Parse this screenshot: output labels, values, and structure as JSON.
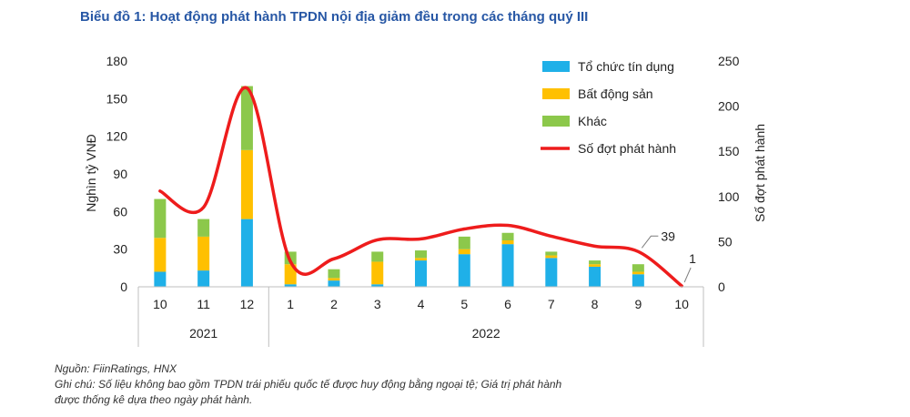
{
  "title": "Biểu đồ 1: Hoạt động phát hành TPDN nội địa giảm đều trong các tháng quý III",
  "source": "Nguồn: FiinRatings, HNX",
  "note_line1": "Ghi chú: Số liệu không bao gồm TPDN trái phiếu quốc tế được huy động bằng ngoại tệ; Giá trị phát hành",
  "note_line2": "được thống kê dựa theo ngày phát hành.",
  "chart_data": {
    "type": "bar",
    "stacked": true,
    "categories": [
      "10",
      "11",
      "12",
      "1",
      "2",
      "3",
      "4",
      "5",
      "6",
      "7",
      "8",
      "9",
      "10"
    ],
    "year_groups": [
      {
        "label": "2021",
        "start": 0,
        "end": 2
      },
      {
        "label": "2022",
        "start": 3,
        "end": 12
      }
    ],
    "series": [
      {
        "name": "Tổ chức tín dụng",
        "color": "#1fb0e8",
        "axis": "left",
        "values": [
          12,
          13,
          54,
          2,
          5,
          2,
          21,
          26,
          34,
          23,
          16,
          10,
          0
        ]
      },
      {
        "name": "Bất động sản",
        "color": "#ffc000",
        "axis": "left",
        "values": [
          27,
          27,
          55,
          16,
          2,
          18,
          2,
          4,
          3,
          2,
          2,
          2,
          0
        ]
      },
      {
        "name": "Khác",
        "color": "#8cc84b",
        "axis": "left",
        "values": [
          31,
          14,
          51,
          10,
          7,
          8,
          6,
          10,
          6,
          3,
          3,
          6,
          0
        ]
      },
      {
        "name": "Số đợt phát hành",
        "color": "#ee1c1c",
        "type": "line",
        "axis": "right",
        "values": [
          106,
          88,
          220,
          28,
          31,
          52,
          53,
          64,
          68,
          56,
          45,
          39,
          1
        ]
      }
    ],
    "ylabel": "Nghìn tỷ VNĐ",
    "y2label": "Số đợt phát hành",
    "ylim": [
      0,
      180
    ],
    "yticks": [
      "0",
      "30",
      "60",
      "90",
      "120",
      "150",
      "180"
    ],
    "y2lim": [
      0,
      250
    ],
    "y2ticks": [
      "0",
      "50",
      "100",
      "150",
      "200",
      "250"
    ],
    "annotations": [
      {
        "text": "39",
        "index": 11
      },
      {
        "text": "1",
        "index": 12
      }
    ],
    "legend": "top-right",
    "grid": false
  }
}
